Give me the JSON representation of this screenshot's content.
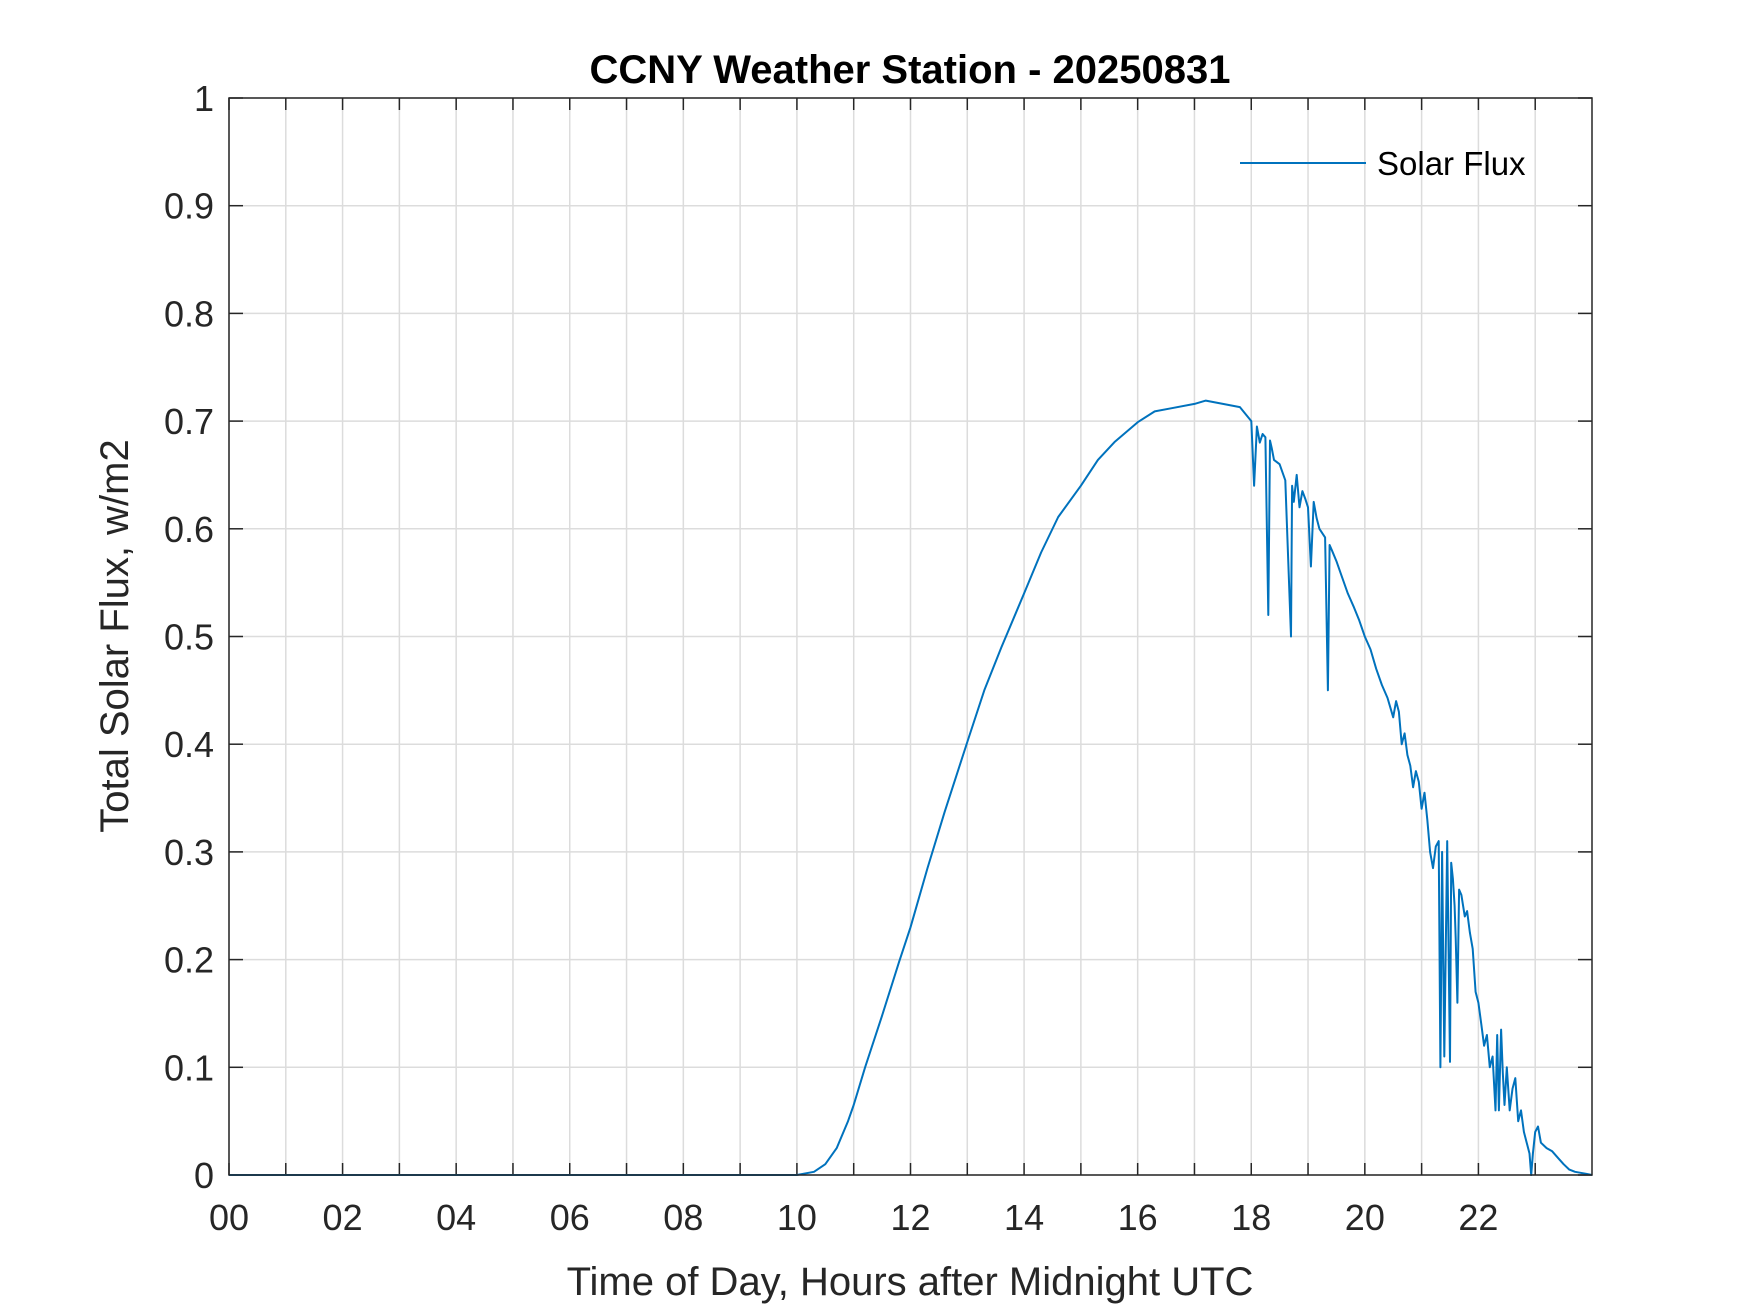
{
  "chart_data": {
    "type": "line",
    "title": "CCNY Weather Station - 20250831",
    "xlabel": "Time of Day, Hours after Midnight UTC",
    "ylabel": "Total Solar Flux, w/m2",
    "xlim": [
      0,
      24
    ],
    "ylim": [
      0,
      1
    ],
    "grid": true,
    "legend_position": "top-right",
    "x_ticks": [
      0,
      2,
      4,
      6,
      8,
      10,
      12,
      14,
      16,
      18,
      20,
      22
    ],
    "x_tick_labels": [
      "00",
      "02",
      "04",
      "06",
      "08",
      "10",
      "12",
      "14",
      "16",
      "18",
      "20",
      "22"
    ],
    "x_minor_ticks": [
      1,
      3,
      5,
      7,
      9,
      11,
      13,
      15,
      17,
      19,
      21,
      23
    ],
    "y_ticks": [
      0,
      0.1,
      0.2,
      0.3,
      0.4,
      0.5,
      0.6,
      0.7,
      0.8,
      0.9,
      1
    ],
    "y_tick_labels": [
      "0",
      "0.1",
      "0.2",
      "0.3",
      "0.4",
      "0.5",
      "0.6",
      "0.7",
      "0.8",
      "0.9",
      "1"
    ],
    "series": [
      {
        "name": "Solar Flux",
        "color": "#0072BD",
        "x": [
          0,
          10.0,
          10.3,
          10.5,
          10.7,
          10.9,
          11.0,
          11.2,
          11.5,
          11.8,
          12.0,
          12.3,
          12.6,
          13.0,
          13.3,
          13.6,
          14.0,
          14.3,
          14.6,
          15.0,
          15.3,
          15.6,
          16.0,
          16.3,
          16.6,
          17.0,
          17.2,
          17.5,
          17.8,
          18.0,
          18.05,
          18.1,
          18.15,
          18.2,
          18.25,
          18.3,
          18.33,
          18.36,
          18.4,
          18.5,
          18.6,
          18.7,
          18.72,
          18.75,
          18.8,
          18.85,
          18.9,
          18.95,
          19.0,
          19.05,
          19.1,
          19.15,
          19.2,
          19.3,
          19.35,
          19.38,
          19.42,
          19.5,
          19.6,
          19.7,
          19.8,
          19.9,
          20.0,
          20.1,
          20.2,
          20.3,
          20.4,
          20.5,
          20.55,
          20.6,
          20.65,
          20.7,
          20.75,
          20.8,
          20.85,
          20.9,
          20.95,
          21.0,
          21.05,
          21.1,
          21.15,
          21.2,
          21.25,
          21.3,
          21.33,
          21.36,
          21.4,
          21.45,
          21.5,
          21.52,
          21.55,
          21.58,
          21.6,
          21.63,
          21.66,
          21.7,
          21.73,
          21.76,
          21.8,
          21.85,
          21.9,
          21.95,
          22.0,
          22.05,
          22.1,
          22.15,
          22.2,
          22.25,
          22.3,
          22.33,
          22.36,
          22.4,
          22.43,
          22.46,
          22.5,
          22.55,
          22.6,
          22.65,
          22.7,
          22.75,
          22.8,
          22.85,
          22.9,
          22.93,
          22.96,
          23.0,
          23.05,
          23.1,
          23.2,
          23.3,
          23.4,
          23.5,
          23.6,
          23.7,
          23.8,
          23.9,
          24.0
        ],
        "y": [
          0,
          0,
          0.003,
          0.01,
          0.025,
          0.05,
          0.065,
          0.1,
          0.148,
          0.198,
          0.23,
          0.285,
          0.337,
          0.402,
          0.45,
          0.49,
          0.54,
          0.578,
          0.611,
          0.64,
          0.664,
          0.681,
          0.699,
          0.709,
          0.712,
          0.716,
          0.719,
          0.716,
          0.713,
          0.7,
          0.64,
          0.695,
          0.68,
          0.688,
          0.685,
          0.52,
          0.682,
          0.675,
          0.664,
          0.66,
          0.645,
          0.5,
          0.64,
          0.625,
          0.65,
          0.62,
          0.635,
          0.628,
          0.62,
          0.565,
          0.625,
          0.61,
          0.6,
          0.592,
          0.45,
          0.585,
          0.58,
          0.57,
          0.555,
          0.54,
          0.528,
          0.515,
          0.5,
          0.488,
          0.47,
          0.455,
          0.443,
          0.425,
          0.44,
          0.43,
          0.4,
          0.41,
          0.39,
          0.38,
          0.36,
          0.375,
          0.365,
          0.34,
          0.355,
          0.33,
          0.3,
          0.285,
          0.305,
          0.31,
          0.1,
          0.3,
          0.11,
          0.31,
          0.105,
          0.29,
          0.275,
          0.25,
          0.22,
          0.16,
          0.265,
          0.26,
          0.25,
          0.24,
          0.245,
          0.225,
          0.21,
          0.17,
          0.16,
          0.14,
          0.12,
          0.13,
          0.1,
          0.11,
          0.06,
          0.13,
          0.06,
          0.135,
          0.095,
          0.065,
          0.1,
          0.06,
          0.08,
          0.09,
          0.05,
          0.06,
          0.04,
          0.03,
          0.02,
          0,
          0.02,
          0.04,
          0.045,
          0.03,
          0.025,
          0.022,
          0.016,
          0.01,
          0.005,
          0.003,
          0.002,
          0.001,
          0
        ]
      }
    ]
  }
}
